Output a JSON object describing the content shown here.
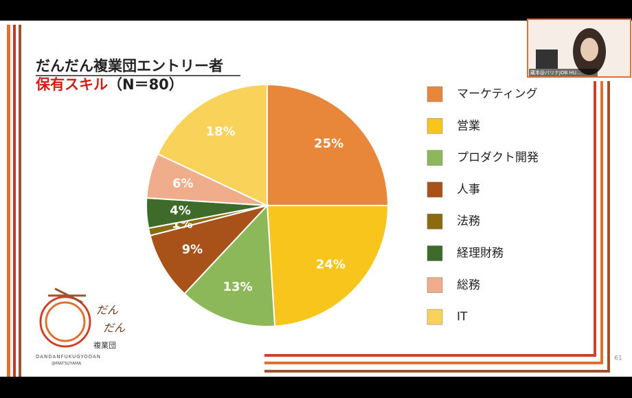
{
  "chart_data": {
    "type": "pie",
    "title": "だんだん複業団エントリー者",
    "subtitle": [
      "保有スキル",
      "（N＝80）"
    ],
    "categories": [
      "マーケティング",
      "営業",
      "プロダクト開発",
      "人事",
      "法務",
      "経理財務",
      "総務",
      "IT"
    ],
    "values": [
      25,
      24,
      13,
      9,
      1,
      4,
      6,
      18
    ],
    "value_labels": [
      "25%",
      "24%",
      "13%",
      "9%",
      "1%",
      "4%",
      "6%",
      "18%"
    ],
    "colors": [
      "#e8873a",
      "#f8c51c",
      "#8cb85a",
      "#a8521a",
      "#8c6a10",
      "#3f6b2a",
      "#f0ad8c",
      "#f9d25a"
    ],
    "legend": "right"
  },
  "slide": {
    "page_number": "61",
    "logo_lines": [
      "だん",
      "だん",
      "複業団"
    ],
    "logo_sub": [
      "DANDANFUKUGYODAN",
      "@MATSUYAMA"
    ]
  },
  "webcam": {
    "caption": "蔵本@バリナJOB HU..."
  }
}
